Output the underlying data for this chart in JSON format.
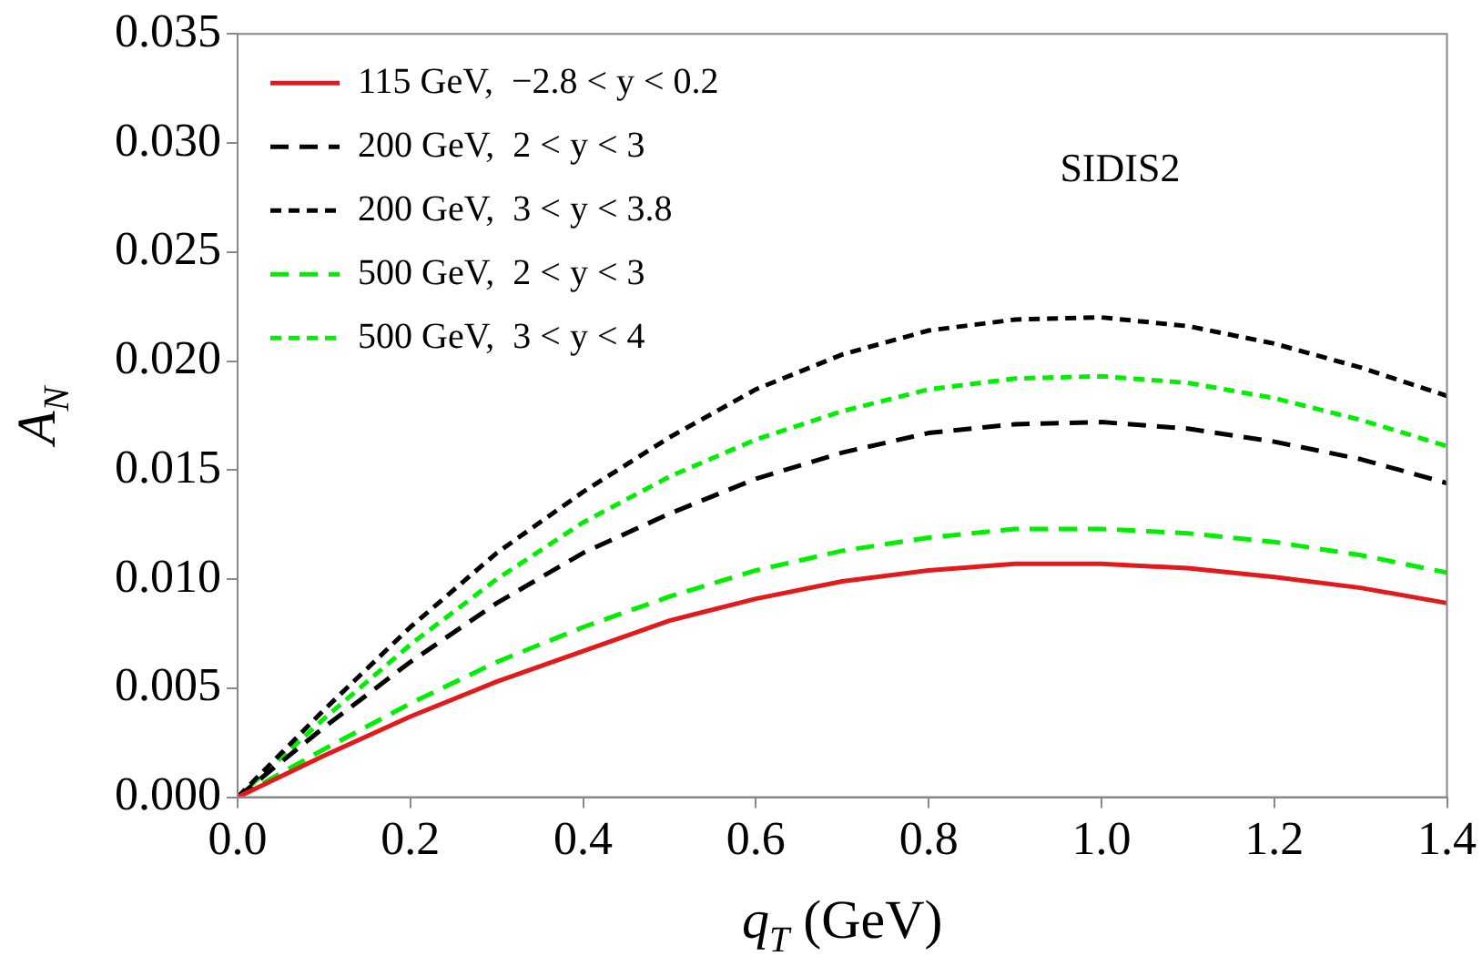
{
  "chart_data": {
    "type": "line",
    "xlabel": "q$_{T}$ (GeV)",
    "ylabel": "A$_{N}$",
    "annotations": [
      "SIDIS2"
    ],
    "x": [
      0,
      0.1,
      0.2,
      0.3,
      0.4,
      0.5,
      0.6,
      0.7,
      0.8,
      0.9,
      1.0,
      1.1,
      1.2,
      1.3,
      1.4
    ],
    "xlim": [
      0,
      1.4
    ],
    "xticks": [
      {
        "value": 0,
        "label": "0.0"
      },
      {
        "value": 0.2,
        "label": "0.2"
      },
      {
        "value": 0.4,
        "label": "0.4"
      },
      {
        "value": 0.6,
        "label": "0.6"
      },
      {
        "value": 0.8,
        "label": "0.8"
      },
      {
        "value": 1.0,
        "label": "1.0"
      },
      {
        "value": 1.2,
        "label": "1.2"
      },
      {
        "value": 1.4,
        "label": "1.4"
      }
    ],
    "ylim": [
      0,
      0.035
    ],
    "yticks": [
      {
        "value": 0,
        "label": "0.000"
      },
      {
        "value": 0.005,
        "label": "0.005"
      },
      {
        "value": 0.01,
        "label": "0.010"
      },
      {
        "value": 0.015,
        "label": "0.015"
      },
      {
        "value": 0.02,
        "label": "0.020"
      },
      {
        "value": 0.025,
        "label": "0.025"
      },
      {
        "value": 0.03,
        "label": "0.030"
      },
      {
        "value": 0.035,
        "label": "0.035"
      }
    ],
    "grid": false,
    "legend": "top left",
    "marker": "none",
    "series": [
      {
        "name": "115 GeV,  −2.8 < y < 0.2",
        "color": "#e31a1c",
        "line_style": "solid",
        "values": [
          0,
          0.0019,
          0.0037,
          0.0053,
          0.0067,
          0.0081,
          0.0091,
          0.0099,
          0.0104,
          0.0107,
          0.0107,
          0.0105,
          0.0101,
          0.0096,
          0.0089
        ]
      },
      {
        "name": "200 GeV,  2 < y < 3",
        "color": "#000000",
        "line_style": "dashed",
        "values": [
          0,
          0.0032,
          0.0062,
          0.0089,
          0.0112,
          0.013,
          0.0146,
          0.0158,
          0.0167,
          0.0171,
          0.0172,
          0.0169,
          0.0163,
          0.0155,
          0.0144
        ]
      },
      {
        "name": "200 GeV,  3 < y < 3.8",
        "color": "#000000",
        "line_style": "dashed",
        "values": [
          0,
          0.004,
          0.0078,
          0.0112,
          0.014,
          0.0165,
          0.0187,
          0.0203,
          0.0214,
          0.0219,
          0.022,
          0.0216,
          0.0208,
          0.0197,
          0.0184
        ]
      },
      {
        "name": "500 GeV,  2 < y < 3",
        "color": "#00ee00",
        "line_style": "dashed",
        "values": [
          0,
          0.0022,
          0.0043,
          0.0062,
          0.0078,
          0.0092,
          0.0104,
          0.0113,
          0.0119,
          0.0123,
          0.0123,
          0.0121,
          0.0117,
          0.0111,
          0.0103
        ]
      },
      {
        "name": "500 GeV,  3 < y < 4",
        "color": "#00ee00",
        "line_style": "dashed",
        "values": [
          0,
          0.0036,
          0.007,
          0.01,
          0.0126,
          0.0147,
          0.0164,
          0.0177,
          0.0187,
          0.0192,
          0.0193,
          0.019,
          0.0183,
          0.0173,
          0.0161
        ]
      }
    ]
  }
}
